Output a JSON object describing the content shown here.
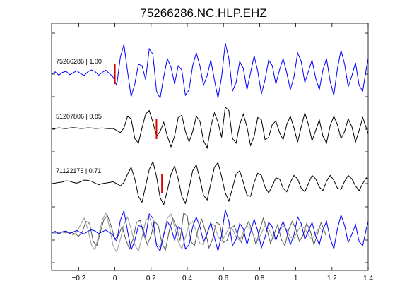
{
  "chart_data": {
    "type": "line",
    "title": "75266286.NC.HLP.EHZ",
    "xlabel": "",
    "ylabel": "",
    "xlim": [
      -0.35,
      1.4
    ],
    "xticks": [
      -0.2,
      0,
      0.2,
      0.4,
      0.6,
      0.8,
      1,
      1.2,
      1.4
    ],
    "xtick_labels": [
      "−0.2",
      "0",
      "0.2",
      "0.4",
      "0.6",
      "0.8",
      "1",
      "1.2",
      "1.4"
    ],
    "grid": false,
    "legend": "none",
    "series": [
      {
        "label": "75266286 | 1.00",
        "color": "#0000ff",
        "pick_time": 0.0,
        "x": [
          -0.35,
          -0.33,
          -0.31,
          -0.29,
          -0.27,
          -0.25,
          -0.23,
          -0.21,
          -0.19,
          -0.17,
          -0.15,
          -0.13,
          -0.11,
          -0.09,
          -0.07,
          -0.05,
          -0.03,
          -0.01,
          0.01,
          0.03,
          0.05,
          0.07,
          0.09,
          0.11,
          0.13,
          0.15,
          0.17,
          0.19,
          0.21,
          0.23,
          0.25,
          0.27,
          0.29,
          0.31,
          0.33,
          0.35,
          0.37,
          0.39,
          0.41,
          0.43,
          0.45,
          0.47,
          0.49,
          0.51,
          0.53,
          0.55,
          0.57,
          0.59,
          0.61,
          0.63,
          0.65,
          0.67,
          0.69,
          0.71,
          0.73,
          0.75,
          0.77,
          0.79,
          0.81,
          0.83,
          0.85,
          0.87,
          0.89,
          0.91,
          0.93,
          0.95,
          0.97,
          0.99,
          1.01,
          1.03,
          1.05,
          1.07,
          1.09,
          1.11,
          1.13,
          1.15,
          1.17,
          1.19,
          1.21,
          1.23,
          1.25,
          1.27,
          1.29,
          1.31,
          1.33,
          1.35,
          1.37,
          1.39,
          1.4
        ],
        "y": [
          0.0,
          0.08,
          -0.04,
          0.06,
          0.1,
          -0.02,
          0.05,
          0.12,
          0.02,
          -0.05,
          0.08,
          0.15,
          0.1,
          -0.04,
          0.06,
          0.14,
          0.02,
          -0.1,
          -0.4,
          0.6,
          1.05,
          0.1,
          -0.8,
          -0.35,
          0.35,
          0.3,
          -0.2,
          0.9,
          0.7,
          -0.6,
          -0.85,
          -0.1,
          0.55,
          0.25,
          -0.35,
          0.3,
          0.15,
          -0.75,
          -0.55,
          0.3,
          0.75,
          0.3,
          -0.4,
          -0.05,
          0.5,
          -0.2,
          -0.85,
          -0.1,
          1.1,
          0.55,
          -0.6,
          -0.3,
          0.45,
          0.2,
          -0.55,
          0.05,
          0.65,
          0.1,
          -0.7,
          -0.2,
          0.5,
          0.3,
          -0.35,
          0.15,
          0.55,
          0.05,
          -0.55,
          -0.1,
          0.75,
          0.45,
          -0.3,
          0.1,
          0.5,
          -0.15,
          -0.55,
          0.15,
          0.55,
          -0.25,
          -0.75,
          0.2,
          0.85,
          0.35,
          -0.45,
          -0.05,
          0.4,
          -0.4,
          -0.6,
          0.2,
          0.55
        ]
      },
      {
        "label": "51207806 | 0.85",
        "color": "#000000",
        "pick_time": 0.23,
        "x": [
          -0.35,
          -0.33,
          -0.31,
          -0.29,
          -0.27,
          -0.25,
          -0.23,
          -0.21,
          -0.19,
          -0.17,
          -0.15,
          -0.13,
          -0.11,
          -0.09,
          -0.07,
          -0.05,
          -0.03,
          -0.01,
          0.01,
          0.03,
          0.05,
          0.07,
          0.09,
          0.11,
          0.13,
          0.15,
          0.17,
          0.19,
          0.21,
          0.23,
          0.25,
          0.27,
          0.29,
          0.31,
          0.33,
          0.35,
          0.37,
          0.39,
          0.41,
          0.43,
          0.45,
          0.47,
          0.49,
          0.51,
          0.53,
          0.55,
          0.57,
          0.59,
          0.61,
          0.63,
          0.65,
          0.67,
          0.69,
          0.71,
          0.73,
          0.75,
          0.77,
          0.79,
          0.81,
          0.83,
          0.85,
          0.87,
          0.89,
          0.91,
          0.93,
          0.95,
          0.97,
          0.99,
          1.01,
          1.03,
          1.05,
          1.07,
          1.09,
          1.11,
          1.13,
          1.15,
          1.17,
          1.19,
          1.21,
          1.23,
          1.25,
          1.27,
          1.29,
          1.31,
          1.33,
          1.35,
          1.37,
          1.39,
          1.4
        ],
        "y": [
          0.0,
          0.03,
          0.06,
          0.04,
          0.02,
          0.05,
          0.07,
          0.05,
          0.03,
          0.04,
          0.06,
          0.05,
          0.03,
          0.04,
          0.05,
          0.03,
          0.02,
          0.03,
          -0.05,
          -0.15,
          0.05,
          0.55,
          0.45,
          -0.4,
          -0.6,
          0.05,
          0.65,
          0.8,
          0.3,
          -0.3,
          -0.1,
          0.3,
          -0.3,
          -0.75,
          -0.3,
          0.5,
          0.6,
          -0.1,
          -0.55,
          -0.1,
          0.55,
          0.35,
          -0.5,
          -0.8,
          0.1,
          0.7,
          0.3,
          -0.35,
          0.95,
          0.8,
          -0.4,
          -0.6,
          0.2,
          0.65,
          0.1,
          -0.7,
          -0.3,
          0.5,
          0.4,
          -0.45,
          -0.35,
          0.2,
          0.35,
          -0.15,
          -0.45,
          0.2,
          0.55,
          0.05,
          -0.55,
          0.1,
          0.7,
          0.2,
          -0.5,
          -0.05,
          0.4,
          -0.3,
          -0.6,
          0.15,
          0.55,
          0.2,
          -0.4,
          -0.1,
          0.45,
          0.1,
          -0.55,
          -0.05,
          0.5,
          0.05,
          -0.2
        ]
      },
      {
        "label": "71122175 | 0.71",
        "color": "#000000",
        "pick_time": 0.26,
        "x": [
          -0.35,
          -0.33,
          -0.31,
          -0.29,
          -0.27,
          -0.25,
          -0.23,
          -0.21,
          -0.19,
          -0.17,
          -0.15,
          -0.13,
          -0.11,
          -0.09,
          -0.07,
          -0.05,
          -0.03,
          -0.01,
          0.01,
          0.03,
          0.05,
          0.07,
          0.09,
          0.11,
          0.13,
          0.15,
          0.17,
          0.19,
          0.21,
          0.23,
          0.25,
          0.27,
          0.29,
          0.31,
          0.33,
          0.35,
          0.37,
          0.39,
          0.41,
          0.43,
          0.45,
          0.47,
          0.49,
          0.51,
          0.53,
          0.55,
          0.57,
          0.59,
          0.61,
          0.63,
          0.65,
          0.67,
          0.69,
          0.71,
          0.73,
          0.75,
          0.77,
          0.79,
          0.81,
          0.83,
          0.85,
          0.87,
          0.89,
          0.91,
          0.93,
          0.95,
          0.97,
          0.99,
          1.01,
          1.03,
          1.05,
          1.07,
          1.09,
          1.11,
          1.13,
          1.15,
          1.17,
          1.19,
          1.21,
          1.23,
          1.25,
          1.27,
          1.29,
          1.31,
          1.33,
          1.35,
          1.37,
          1.39,
          1.4
        ],
        "y": [
          0.0,
          0.02,
          0.05,
          0.07,
          0.12,
          0.1,
          0.05,
          0.02,
          0.08,
          0.15,
          0.14,
          0.1,
          0.02,
          -0.05,
          0.0,
          0.02,
          0.05,
          0.08,
          0.0,
          -0.1,
          0.05,
          0.4,
          0.7,
          0.2,
          -0.55,
          -0.8,
          -0.1,
          0.6,
          0.95,
          0.3,
          -0.6,
          -0.9,
          -0.3,
          0.4,
          0.75,
          0.2,
          -0.55,
          -0.85,
          -0.2,
          0.55,
          0.8,
          0.2,
          -0.5,
          -0.7,
          0.0,
          0.7,
          0.9,
          0.3,
          -0.4,
          -0.75,
          -0.2,
          0.4,
          0.55,
          0.05,
          -0.5,
          -0.55,
          0.05,
          0.45,
          0.35,
          -0.15,
          -0.4,
          -0.1,
          0.25,
          0.2,
          -0.2,
          -0.35,
          0.05,
          0.35,
          0.2,
          -0.2,
          -0.35,
          0.0,
          0.35,
          0.2,
          -0.15,
          -0.3,
          0.1,
          0.35,
          0.15,
          -0.2,
          -0.25,
          0.1,
          0.35,
          0.2,
          -0.1,
          -0.3,
          0.0,
          0.25,
          0.2
        ]
      }
    ],
    "overlay_panel": {
      "description_visible": false,
      "contains": [
        "75266286 | 1.00",
        "51207806 | 0.85",
        "71122175 | 0.71"
      ],
      "aligned_to_pick": true
    }
  }
}
